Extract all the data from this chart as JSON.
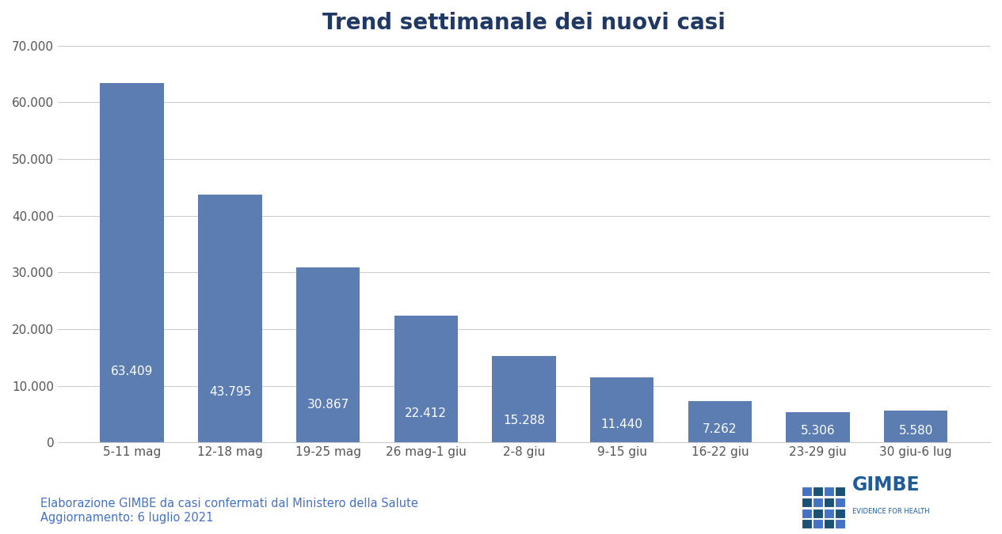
{
  "title": "Trend settimanale dei nuovi casi",
  "categories": [
    "5-11 mag",
    "12-18 mag",
    "19-25 mag",
    "26 mag-1 giu",
    "2-8 giu",
    "9-15 giu",
    "16-22 giu",
    "23-29 giu",
    "30 giu-6 lug"
  ],
  "values": [
    63409,
    43795,
    30867,
    22412,
    15288,
    11440,
    7262,
    5306,
    5580
  ],
  "labels": [
    "63.409",
    "43.795",
    "30.867",
    "22.412",
    "15.288",
    "11.440",
    "7.262",
    "5.306",
    "5.580"
  ],
  "bar_color": "#5B7DB1",
  "background_color": "#ffffff",
  "title_color": "#1F3864",
  "title_fontsize": 20,
  "label_fontsize": 11,
  "tick_fontsize": 11,
  "ylim": [
    0,
    70000
  ],
  "yticks": [
    0,
    10000,
    20000,
    30000,
    40000,
    50000,
    60000,
    70000
  ],
  "ytick_labels": [
    "0",
    "10.000",
    "20.000",
    "30.000",
    "40.000",
    "50.000",
    "60.000",
    "70.000"
  ],
  "grid_color": "#cccccc",
  "footer_line1": "Elaborazione GIMBE da casi confermati dal Ministero della Salute",
  "footer_line2": "Aggiornamento: 6 luglio 2021",
  "footer_color": "#4472C4",
  "footer_fontsize": 10.5,
  "logo_square_colors": [
    "#1a5276",
    "#4472C4",
    "#1a5276",
    "#4472C4",
    "#4472C4",
    "#1a5276",
    "#4472C4",
    "#1a5276",
    "#1a5276",
    "#4472C4",
    "#1a5276",
    "#4472C4",
    "#4472C4",
    "#1a5276",
    "#4472C4",
    "#1a5276"
  ],
  "logo_text": "GIMBE",
  "logo_subtext": "EVIDENCE FOR HEALTH",
  "logo_color": "#1F5C99"
}
